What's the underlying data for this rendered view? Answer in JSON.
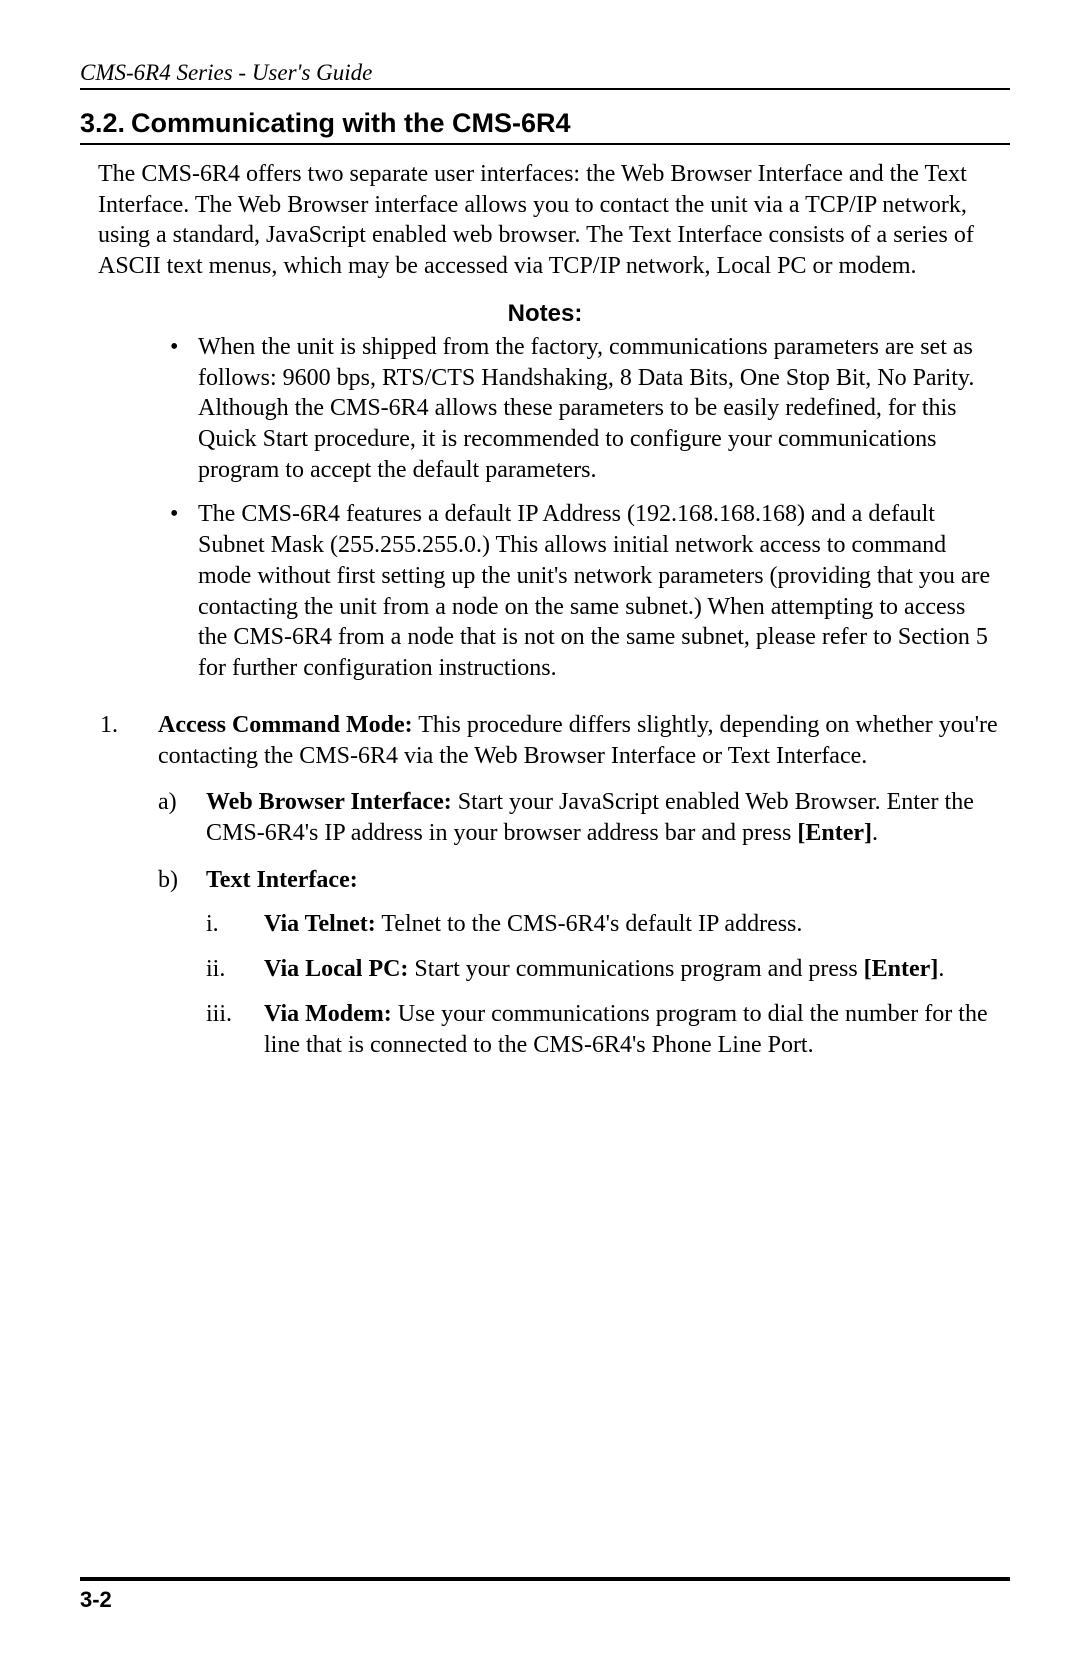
{
  "page": {
    "running_header": "CMS-6R4 Series - User's Guide",
    "footer_page": "3-2"
  },
  "section": {
    "number": "3.2.",
    "title": "Communicating with the CMS-6R4",
    "intro": "The CMS-6R4 offers two separate user interfaces: the Web Browser Interface and the Text Interface.  The Web Browser interface allows you to contact the unit via a TCP/IP network, using a standard, JavaScript enabled web browser.  The Text Interface consists of a series of ASCII text menus, which may be accessed via TCP/IP network, Local PC or modem."
  },
  "notes": {
    "heading": "Notes:",
    "items": [
      "When the unit is shipped from the factory, communications parameters are set as follows: 9600 bps, RTS/CTS Handshaking, 8 Data Bits, One Stop Bit, No Parity.  Although the CMS-6R4 allows these parameters to be easily redefined, for this Quick Start procedure, it is recommended to configure your communications program to accept the default parameters.",
      "The CMS-6R4 features a default IP Address (192.168.168.168) and a default Subnet Mask (255.255.255.0.)  This allows initial network access to command mode without first setting up the unit's network parameters (providing that you are contacting the unit from a node on the same subnet.)  When attempting to access the CMS-6R4 from a node that is not on the same subnet, please refer to Section 5 for further configuration instructions."
    ]
  },
  "step1": {
    "num": "1.",
    "lead_bold": "Access Command Mode:",
    "lead_rest": "  This procedure differs slightly, depending on whether you're contacting the CMS-6R4 via the Web Browser Interface or Text Interface.",
    "a": {
      "label": "a)",
      "bold": "Web Browser Interface:",
      "rest1": "  Start your JavaScript enabled Web Browser.  Enter the CMS-6R4's IP address in your browser address bar and press ",
      "enter": "[Enter]",
      "rest2": "."
    },
    "b": {
      "label": "b)",
      "bold": "Text Interface:",
      "i": {
        "label": "i.",
        "bold": "Via Telnet:",
        "rest": "  Telnet to the CMS-6R4's default IP address."
      },
      "ii": {
        "label": "ii.",
        "bold": "Via Local PC:",
        "rest1": "  Start your communications program and press ",
        "enter": "[Enter]",
        "rest2": "."
      },
      "iii": {
        "label": "iii.",
        "bold": "Via Modem:",
        "rest": "  Use your communications program to dial the number for the line that is connected to the CMS-6R4's Phone Line Port."
      }
    }
  }
}
